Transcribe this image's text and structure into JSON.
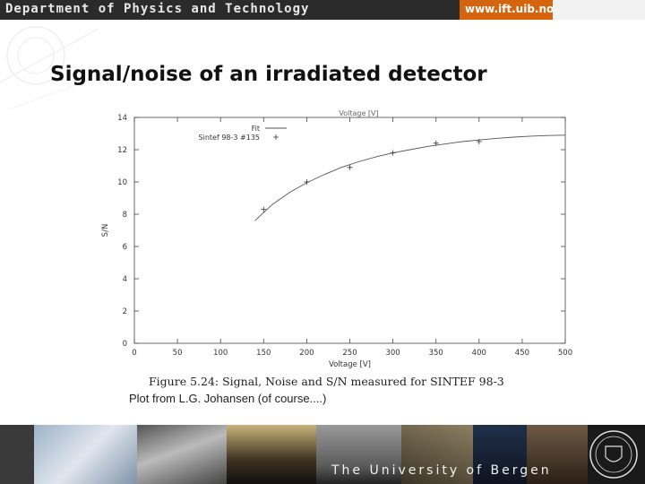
{
  "header": {
    "department": "Department of Physics and Technology",
    "url": "www.ift.uib.no"
  },
  "slide": {
    "title": "Signal/noise of an irradiated detector"
  },
  "figure": {
    "caption": "Figure 5.24: Signal, Noise and S/N measured for SINTEF 98-3",
    "credit": "Plot from L.G. Johansen (of course....)"
  },
  "footer": {
    "university": "The University of Bergen"
  },
  "chart_data": {
    "type": "scatter",
    "title": "",
    "top_axis_label": "Voltage [V]",
    "xlabel": "Voltage [V]",
    "ylabel": "S/N",
    "xlim": [
      0,
      500
    ],
    "ylim": [
      0,
      14
    ],
    "xticks": [
      0,
      50,
      100,
      150,
      200,
      250,
      300,
      350,
      400,
      450,
      500
    ],
    "yticks": [
      0,
      2,
      4,
      6,
      8,
      10,
      12,
      14
    ],
    "legend_position": "top-left",
    "series": [
      {
        "name": "Fit",
        "kind": "line",
        "color": "#555555",
        "x": [
          140,
          160,
          180,
          200,
          220,
          240,
          260,
          280,
          300,
          320,
          340,
          360,
          380,
          400,
          420,
          440,
          460,
          480,
          500
        ],
        "y": [
          7.6,
          8.6,
          9.35,
          9.95,
          10.45,
          10.9,
          11.25,
          11.55,
          11.8,
          12.0,
          12.2,
          12.35,
          12.5,
          12.6,
          12.7,
          12.78,
          12.84,
          12.88,
          12.9
        ]
      },
      {
        "name": "Sintef 98-3 #135",
        "kind": "points",
        "color": "#333333",
        "x": [
          150,
          200,
          250,
          300,
          350,
          400
        ],
        "y": [
          8.3,
          10.0,
          10.9,
          11.8,
          12.4,
          12.5
        ]
      }
    ]
  }
}
